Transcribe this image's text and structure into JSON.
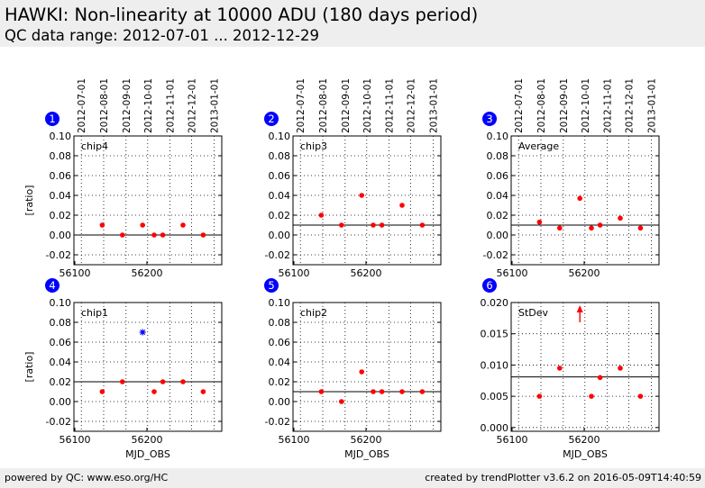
{
  "header": {
    "title": "HAWKI: Non-linearity at 10000 ADU (180 days period)",
    "subtitle": "QC data range: 2012-07-01 ... 2012-12-29"
  },
  "footer": {
    "left": "powered by QC: www.eso.org/HC",
    "right": "created by trendPlotter v3.6.2 on 2016-05-09T14:40:59"
  },
  "colors": {
    "points": "#ff0000",
    "outlier": "#0000ff",
    "badge": "#0000ff",
    "reference_line": "#000000"
  },
  "chart_data": [
    {
      "type": "scatter",
      "badge": "1",
      "label": "chip4",
      "ylabel": "[ratio]",
      "xlabel": "",
      "xlim": [
        56100,
        56210
      ],
      "ylim": [
        -0.03,
        0.1
      ],
      "yticks": [
        "-0.02",
        "0.00",
        "0.02",
        "0.04",
        "0.06",
        "0.08",
        "0.10"
      ],
      "xticks": [
        "56100",
        "56200"
      ],
      "top_ticks": [
        "2012-07-01",
        "2012-08-01",
        "2012-09-01",
        "2012-10-01",
        "2012-11-01",
        "2012-12-01",
        "2013-01-01"
      ],
      "reference": 0.0,
      "points": [
        [
          56138,
          0.01
        ],
        [
          56166,
          0.0
        ],
        [
          56194,
          0.01
        ],
        [
          56210,
          0.0
        ],
        [
          56222,
          0.0
        ],
        [
          56250,
          0.01
        ],
        [
          56278,
          0.0
        ]
      ],
      "outliers": []
    },
    {
      "type": "scatter",
      "badge": "2",
      "label": "chip3",
      "ylabel": "",
      "xlabel": "",
      "xlim": [
        56100,
        56210
      ],
      "ylim": [
        -0.03,
        0.1
      ],
      "yticks": [
        "-0.02",
        "0.00",
        "0.02",
        "0.04",
        "0.06",
        "0.08",
        "0.10"
      ],
      "xticks": [
        "56100",
        "56200"
      ],
      "top_ticks": [
        "2012-07-01",
        "2012-08-01",
        "2012-09-01",
        "2012-10-01",
        "2012-11-01",
        "2012-12-01",
        "2013-01-01"
      ],
      "reference": 0.01,
      "points": [
        [
          56138,
          0.02
        ],
        [
          56166,
          0.01
        ],
        [
          56194,
          0.04
        ],
        [
          56210,
          0.01
        ],
        [
          56222,
          0.01
        ],
        [
          56250,
          0.03
        ],
        [
          56278,
          0.01
        ]
      ],
      "outliers": []
    },
    {
      "type": "scatter",
      "badge": "3",
      "label": "Average",
      "ylabel": "",
      "xlabel": "",
      "xlim": [
        56100,
        56210
      ],
      "ylim": [
        -0.03,
        0.1
      ],
      "yticks": [
        "-0.02",
        "0.00",
        "0.02",
        "0.04",
        "0.06",
        "0.08",
        "0.10"
      ],
      "xticks": [
        "56100",
        "56200"
      ],
      "top_ticks": [
        "2012-07-01",
        "2012-08-01",
        "2012-09-01",
        "2012-10-01",
        "2012-11-01",
        "2012-12-01",
        "2013-01-01"
      ],
      "reference": 0.01,
      "points": [
        [
          56138,
          0.013
        ],
        [
          56166,
          0.007
        ],
        [
          56194,
          0.037
        ],
        [
          56210,
          0.007
        ],
        [
          56222,
          0.01
        ],
        [
          56250,
          0.017
        ],
        [
          56278,
          0.007
        ]
      ],
      "outliers": []
    },
    {
      "type": "scatter",
      "badge": "4",
      "label": "chip1",
      "ylabel": "[ratio]",
      "xlabel": "MJD_OBS",
      "xlim": [
        56100,
        56210
      ],
      "ylim": [
        -0.03,
        0.1
      ],
      "yticks": [
        "-0.02",
        "0.00",
        "0.02",
        "0.04",
        "0.06",
        "0.08",
        "0.10"
      ],
      "xticks": [
        "56100",
        "56200"
      ],
      "top_ticks": [],
      "reference": 0.02,
      "points": [
        [
          56138,
          0.01
        ],
        [
          56166,
          0.02
        ],
        [
          56210,
          0.01
        ],
        [
          56222,
          0.02
        ],
        [
          56250,
          0.02
        ],
        [
          56278,
          0.01
        ]
      ],
      "outliers": [
        [
          56194,
          0.07
        ]
      ]
    },
    {
      "type": "scatter",
      "badge": "5",
      "label": "chip2",
      "ylabel": "",
      "xlabel": "MJD_OBS",
      "xlim": [
        56100,
        56210
      ],
      "ylim": [
        -0.03,
        0.1
      ],
      "yticks": [
        "-0.02",
        "0.00",
        "0.02",
        "0.04",
        "0.06",
        "0.08",
        "0.10"
      ],
      "xticks": [
        "56100",
        "56200"
      ],
      "top_ticks": [],
      "reference": 0.01,
      "points": [
        [
          56138,
          0.01
        ],
        [
          56166,
          0.0
        ],
        [
          56194,
          0.03
        ],
        [
          56210,
          0.01
        ],
        [
          56222,
          0.01
        ],
        [
          56250,
          0.01
        ],
        [
          56278,
          0.01
        ]
      ],
      "outliers": []
    },
    {
      "type": "scatter",
      "badge": "6",
      "label": "StDev",
      "ylabel": "",
      "xlabel": "MJD_OBS",
      "xlim": [
        56100,
        56210
      ],
      "ylim": [
        -0.0006,
        0.02
      ],
      "yticks": [
        "0.000",
        "0.005",
        "0.010",
        "0.015",
        "0.020"
      ],
      "xticks": [
        "56100",
        "56200"
      ],
      "top_ticks": [],
      "reference": 0.0081,
      "points": [
        [
          56138,
          0.005
        ],
        [
          56166,
          0.0095
        ],
        [
          56210,
          0.005
        ],
        [
          56222,
          0.008
        ],
        [
          56250,
          0.0095
        ],
        [
          56278,
          0.005
        ]
      ],
      "outliers": [],
      "offscale_up": [
        [
          56194,
          0.019
        ]
      ]
    }
  ]
}
